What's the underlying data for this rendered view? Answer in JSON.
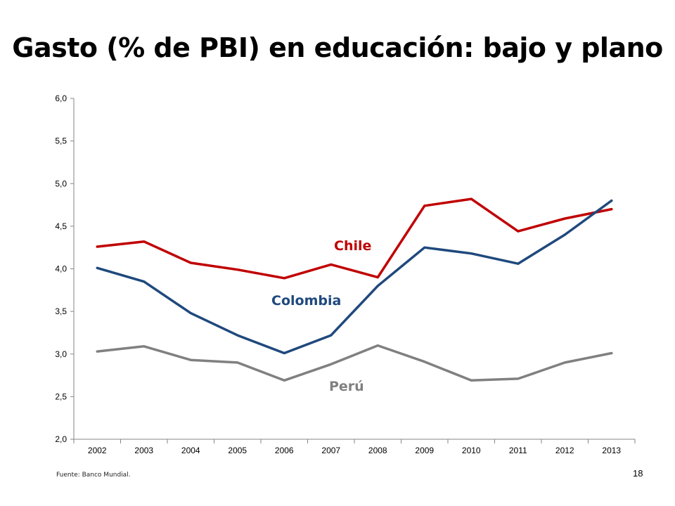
{
  "title": "Gasto (% de PBI) en educación: bajo y plano",
  "source": "Fuente: Banco Mundial.",
  "page_number": "18",
  "chart_data": {
    "type": "line",
    "title": "",
    "xlabel": "",
    "ylabel": "",
    "categories": [
      "2002",
      "2003",
      "2004",
      "2005",
      "2006",
      "2007",
      "2008",
      "2009",
      "2010",
      "2011",
      "2012",
      "2013"
    ],
    "ylim": [
      2.0,
      6.0
    ],
    "yticks": [
      "2,0",
      "2,5",
      "3,0",
      "3,5",
      "4,0",
      "4,5",
      "5,0",
      "5,5",
      "6,0"
    ],
    "grid": false,
    "legend": "inline labels",
    "series": [
      {
        "name": "Chile",
        "color": "#C00000",
        "values": [
          4.26,
          4.32,
          4.07,
          3.99,
          3.89,
          4.05,
          3.9,
          4.74,
          4.82,
          4.44,
          4.59,
          4.7
        ]
      },
      {
        "name": "Colombia",
        "color": "#1F497D",
        "values": [
          4.01,
          3.85,
          3.48,
          3.22,
          3.01,
          3.22,
          3.8,
          4.25,
          4.18,
          4.06,
          4.4,
          4.8
        ]
      },
      {
        "name": "Perú",
        "color": "#808080",
        "values": [
          3.03,
          3.09,
          2.93,
          2.9,
          2.69,
          2.88,
          3.1,
          2.91,
          2.69,
          2.71,
          2.9,
          3.01
        ]
      }
    ]
  }
}
